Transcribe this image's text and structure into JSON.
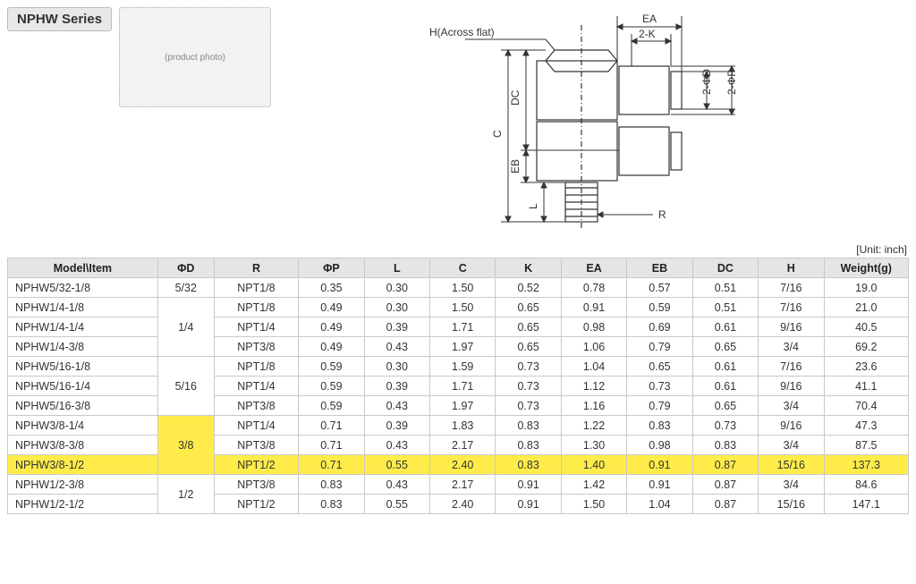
{
  "title": "NPHW Series",
  "photo_alt": "(product photo)",
  "unit_label": "[Unit: inch]",
  "diagram_labels": {
    "h_across_flat": "H(Across flat)",
    "EA": "EA",
    "two_k": "2-K",
    "two_phi_d": "2-ΦD",
    "two_phi_p": "2-ΦP",
    "C": "C",
    "DC": "DC",
    "EB": "EB",
    "L": "L",
    "R": "R"
  },
  "columns": [
    "Model\\Item",
    "ΦD",
    "R",
    "ΦP",
    "L",
    "C",
    "K",
    "EA",
    "EB",
    "DC",
    "H",
    "Weight(g)"
  ],
  "rows": [
    {
      "model": "NPHW5/32-1/8",
      "phd": "5/32",
      "phd_span": 1,
      "r": "NPT1/8",
      "phip": "0.35",
      "l": "0.30",
      "c": "1.50",
      "k": "0.52",
      "ea": "0.78",
      "eb": "0.57",
      "dc": "0.51",
      "h": "7/16",
      "wt": "19.0"
    },
    {
      "model": "NPHW1/4-1/8",
      "phd": "1/4",
      "phd_span": 3,
      "r": "NPT1/8",
      "phip": "0.49",
      "l": "0.30",
      "c": "1.50",
      "k": "0.65",
      "ea": "0.91",
      "eb": "0.59",
      "dc": "0.51",
      "h": "7/16",
      "wt": "21.0"
    },
    {
      "model": "NPHW1/4-1/4",
      "r": "NPT1/4",
      "phip": "0.49",
      "l": "0.39",
      "c": "1.71",
      "k": "0.65",
      "ea": "0.98",
      "eb": "0.69",
      "dc": "0.61",
      "h": "9/16",
      "wt": "40.5"
    },
    {
      "model": "NPHW1/4-3/8",
      "r": "NPT3/8",
      "phip": "0.49",
      "l": "0.43",
      "c": "1.97",
      "k": "0.65",
      "ea": "1.06",
      "eb": "0.79",
      "dc": "0.65",
      "h": "3/4",
      "wt": "69.2"
    },
    {
      "model": "NPHW5/16-1/8",
      "phd": "5/16",
      "phd_span": 3,
      "r": "NPT1/8",
      "phip": "0.59",
      "l": "0.30",
      "c": "1.59",
      "k": "0.73",
      "ea": "1.04",
      "eb": "0.65",
      "dc": "0.61",
      "h": "7/16",
      "wt": "23.6"
    },
    {
      "model": "NPHW5/16-1/4",
      "r": "NPT1/4",
      "phip": "0.59",
      "l": "0.39",
      "c": "1.71",
      "k": "0.73",
      "ea": "1.12",
      "eb": "0.73",
      "dc": "0.61",
      "h": "9/16",
      "wt": "41.1"
    },
    {
      "model": "NPHW5/16-3/8",
      "r": "NPT3/8",
      "phip": "0.59",
      "l": "0.43",
      "c": "1.97",
      "k": "0.73",
      "ea": "1.16",
      "eb": "0.79",
      "dc": "0.65",
      "h": "3/4",
      "wt": "70.4"
    },
    {
      "model": "NPHW3/8-1/4",
      "phd": "3/8",
      "phd_span": 3,
      "phd_hl": true,
      "r": "NPT1/4",
      "phip": "0.71",
      "l": "0.39",
      "c": "1.83",
      "k": "0.83",
      "ea": "1.22",
      "eb": "0.83",
      "dc": "0.73",
      "h": "9/16",
      "wt": "47.3"
    },
    {
      "model": "NPHW3/8-3/8",
      "r": "NPT3/8",
      "phip": "0.71",
      "l": "0.43",
      "c": "2.17",
      "k": "0.83",
      "ea": "1.30",
      "eb": "0.98",
      "dc": "0.83",
      "h": "3/4",
      "wt": "87.5"
    },
    {
      "model": "NPHW3/8-1/2",
      "hl": true,
      "r": "NPT1/2",
      "phip": "0.71",
      "l": "0.55",
      "c": "2.40",
      "k": "0.83",
      "ea": "1.40",
      "eb": "0.91",
      "dc": "0.87",
      "h": "15/16",
      "wt": "137.3"
    },
    {
      "model": "NPHW1/2-3/8",
      "phd": "1/2",
      "phd_span": 2,
      "r": "NPT3/8",
      "phip": "0.83",
      "l": "0.43",
      "c": "2.17",
      "k": "0.91",
      "ea": "1.42",
      "eb": "0.91",
      "dc": "0.87",
      "h": "3/4",
      "wt": "84.6"
    },
    {
      "model": "NPHW1/2-1/2",
      "r": "NPT1/2",
      "phip": "0.83",
      "l": "0.55",
      "c": "2.40",
      "k": "0.91",
      "ea": "1.50",
      "eb": "1.04",
      "dc": "0.87",
      "h": "15/16",
      "wt": "147.1"
    }
  ],
  "col_widths_pct": [
    16,
    6,
    9,
    7,
    7,
    7,
    7,
    7,
    7,
    7,
    7,
    9
  ]
}
